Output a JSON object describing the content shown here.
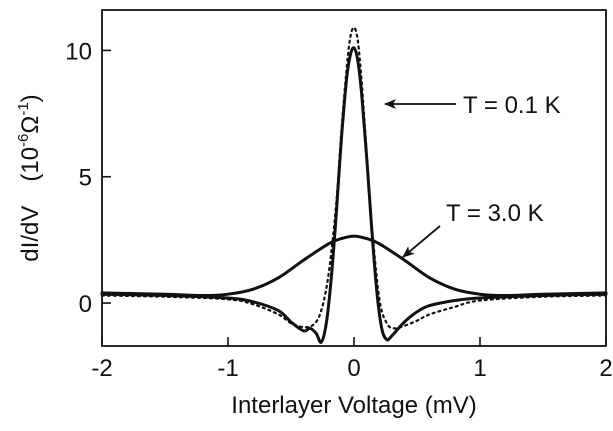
{
  "chart_data": {
    "type": "line",
    "title": "",
    "xlabel": "Interlayer Voltage  (mV)",
    "ylabel_main": "dI/dV",
    "ylabel_unit_prefix": "(10",
    "ylabel_unit_exp": "-6",
    "ylabel_unit_sym": "Ω",
    "ylabel_unit_exp2": "-1",
    "ylabel_unit_suffix": ")",
    "xlim": [
      -2,
      2
    ],
    "ylim": [
      -1.7,
      11.6
    ],
    "xticks": [
      -2,
      -1,
      0,
      1,
      2
    ],
    "xtick_labels": [
      "-2",
      "-1",
      "0",
      "1",
      "2"
    ],
    "yticks": [
      0,
      5,
      10
    ],
    "ytick_labels": [
      "0",
      "5",
      "10"
    ],
    "grid": false,
    "series": [
      {
        "style": "solid",
        "x": [
          -2.0,
          -1.5,
          -1.0,
          -0.8,
          -0.6,
          -0.5,
          -0.4,
          -0.35,
          -0.3,
          -0.26,
          -0.22,
          -0.18,
          -0.14,
          -0.1,
          -0.06,
          -0.03,
          0.0,
          0.03,
          0.06,
          0.1,
          0.14,
          0.18,
          0.22,
          0.26,
          0.3,
          0.4,
          0.5,
          0.6,
          0.8,
          1.0,
          1.5,
          2.0
        ],
        "y": [
          0.35,
          0.3,
          0.2,
          0.05,
          -0.3,
          -0.75,
          -1.1,
          -1.0,
          -1.2,
          -1.55,
          -0.8,
          1.0,
          3.6,
          6.5,
          8.8,
          9.8,
          10.1,
          9.6,
          8.3,
          5.8,
          3.0,
          0.5,
          -1.0,
          -1.45,
          -1.3,
          -0.75,
          -0.35,
          -0.1,
          0.1,
          0.2,
          0.3,
          0.35
        ]
      },
      {
        "style": "dotted",
        "x": [
          -2.0,
          -1.5,
          -1.0,
          -0.8,
          -0.6,
          -0.5,
          -0.4,
          -0.32,
          -0.26,
          -0.2,
          -0.14,
          -0.1,
          -0.06,
          -0.03,
          0.0,
          0.03,
          0.06,
          0.1,
          0.14,
          0.2,
          0.26,
          0.32,
          0.4,
          0.5,
          0.6,
          0.8,
          1.0,
          1.5,
          2.0
        ],
        "y": [
          0.3,
          0.25,
          0.15,
          -0.05,
          -0.45,
          -0.8,
          -0.95,
          -0.85,
          -0.3,
          1.2,
          4.0,
          6.8,
          9.2,
          10.5,
          10.9,
          10.4,
          8.8,
          6.0,
          3.2,
          0.2,
          -0.8,
          -1.0,
          -0.9,
          -0.7,
          -0.45,
          -0.15,
          0.1,
          0.25,
          0.3
        ]
      },
      {
        "style": "solid",
        "x": [
          -2.0,
          -1.5,
          -1.2,
          -1.0,
          -0.8,
          -0.6,
          -0.4,
          -0.2,
          -0.1,
          0.0,
          0.1,
          0.2,
          0.4,
          0.6,
          0.8,
          1.0,
          1.2,
          1.5,
          2.0
        ],
        "y": [
          0.4,
          0.35,
          0.3,
          0.35,
          0.55,
          1.0,
          1.7,
          2.35,
          2.55,
          2.65,
          2.55,
          2.35,
          1.7,
          1.0,
          0.55,
          0.35,
          0.3,
          0.35,
          0.4
        ]
      }
    ],
    "annotations": [
      {
        "text": "T = 0.1 K"
      },
      {
        "text": "T = 3.0 K"
      }
    ]
  }
}
